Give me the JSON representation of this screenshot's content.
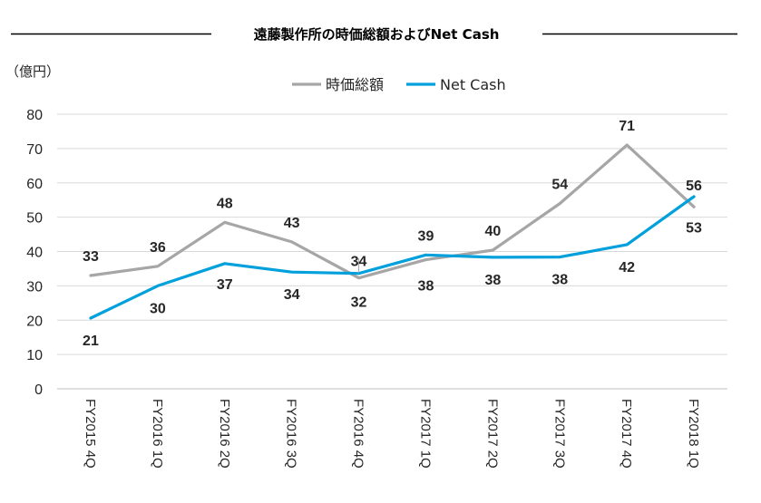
{
  "chart_data": {
    "type": "line",
    "title": "遠藤製作所の時価総額およびNet Cash",
    "unit_label": "（億円）",
    "categories": [
      "FY2015 4Q",
      "FY2016 1Q",
      "FY2016 2Q",
      "FY2016 3Q",
      "FY2016 4Q",
      "FY2017 1Q",
      "FY2017 2Q",
      "FY2017 3Q",
      "FY2017 4Q",
      "FY2018 1Q"
    ],
    "ylim": [
      0,
      80
    ],
    "yticks": [
      0,
      10,
      20,
      30,
      40,
      50,
      60,
      70,
      80
    ],
    "grid": true,
    "legend_position": "top",
    "series": [
      {
        "name": "時価総額",
        "color": "#A6A6A6",
        "values": [
          33,
          36,
          48,
          43,
          32,
          38,
          40,
          54,
          71,
          53
        ]
      },
      {
        "name": "Net Cash",
        "color": "#00A0DC",
        "values": [
          21,
          30,
          37,
          34,
          34,
          39,
          38,
          38,
          42,
          56
        ]
      }
    ],
    "data_labels": [
      [
        "33",
        "36",
        "48",
        "43",
        "32",
        "38",
        "40",
        "54",
        "71",
        "53"
      ],
      [
        "21",
        "30",
        "37",
        "34",
        "34",
        "39",
        "38",
        "38",
        "42",
        "56"
      ]
    ],
    "line_positions": {
      "時価総額": [
        33,
        35.7,
        48.5,
        42.8,
        32.3,
        37.6,
        40.4,
        54.0,
        71.0,
        53.0
      ],
      "Net Cash": [
        20.6,
        30.0,
        36.5,
        34.0,
        33.6,
        39.0,
        38.3,
        38.4,
        42.0,
        56.0
      ]
    }
  }
}
